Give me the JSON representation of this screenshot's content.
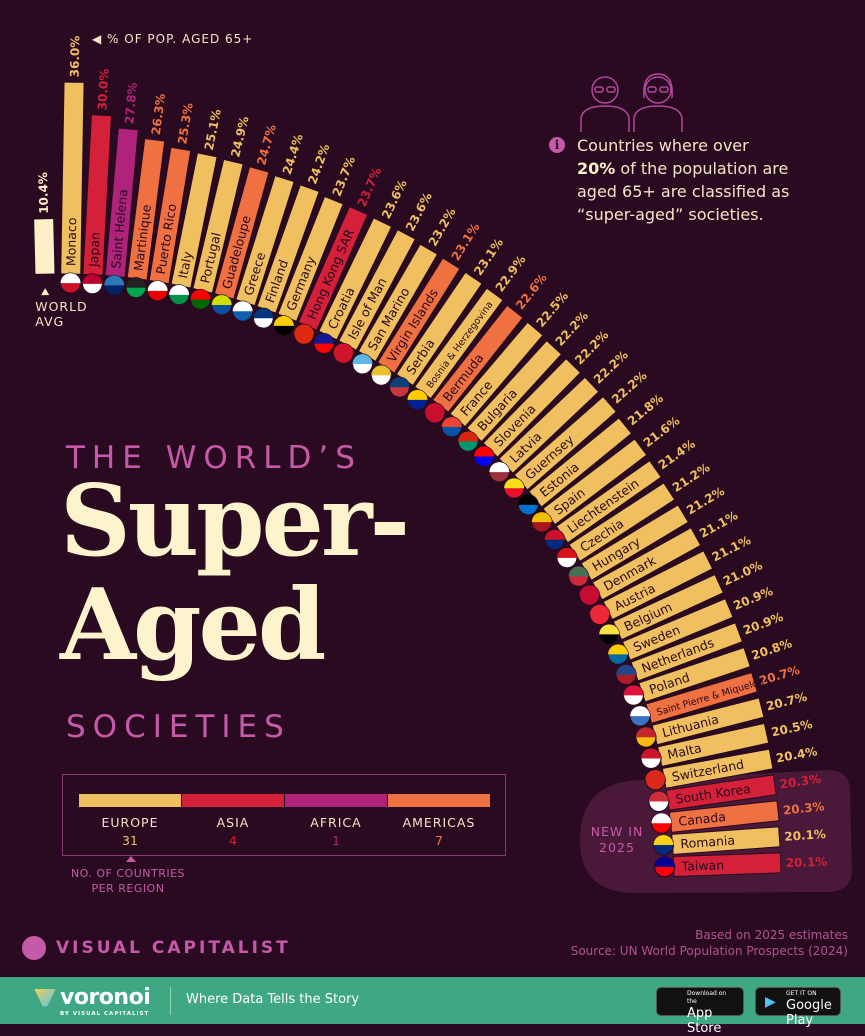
{
  "header": {
    "axis_note": "◀ % OF POP. AGED 65+"
  },
  "info": {
    "icon": "info-icon",
    "text_pre": "Countries where over",
    "text_bold": "20%",
    "text_post": "of the population are aged 65+ are classified as “super-aged” societies."
  },
  "title": {
    "line1": "THE WORLD’S",
    "line2": "Super-",
    "line3": "Aged",
    "line4": "SOCIETIES"
  },
  "legend": {
    "regions": [
      {
        "name": "EUROPE",
        "count": "31",
        "color": "#f0c060"
      },
      {
        "name": "ASIA",
        "count": "4",
        "color": "#d42038"
      },
      {
        "name": "AFRICA",
        "count": "1",
        "color": "#b0237a"
      },
      {
        "name": "AMERICAS",
        "count": "7",
        "color": "#ef7040"
      }
    ],
    "note": "NO. OF COUNTRIES PER REGION"
  },
  "highlight": {
    "label_line1": "NEW IN",
    "label_line2": "2025"
  },
  "brand": "VISUAL CAPITALIST",
  "source": {
    "line1": "Based on 2025 estimates",
    "line2": "Source: UN World Population Prospects (2024)"
  },
  "footer": {
    "logo": "voronoi",
    "logo_sub": "BY VISUAL CAPITALIST",
    "tagline": "Where Data Tells the Story",
    "app_store_small": "Download on the",
    "app_store": "App Store",
    "google_small": "GET IT ON",
    "google": "Google Play"
  },
  "chart_data": {
    "type": "bar",
    "layout": "radial",
    "unit": "% of population aged 65+",
    "reference": {
      "label": "WORLD AVG",
      "value": 10.4,
      "value_label": "10.4%",
      "color": "#fdf0c8"
    },
    "region_colors": {
      "Europe": "#f0c060",
      "Asia": "#d42038",
      "Africa": "#b0237a",
      "Americas": "#ef7040"
    },
    "series": [
      {
        "name": "Monaco",
        "value": 36.0,
        "label": "36.0%",
        "region": "Europe",
        "flag": [
          "#ce1126",
          "#ffffff"
        ]
      },
      {
        "name": "Japan",
        "value": 30.0,
        "label": "30.0%",
        "region": "Asia",
        "flag": [
          "#ffffff",
          "#bc002d"
        ]
      },
      {
        "name": "Saint Helena",
        "value": 27.8,
        "label": "27.8%",
        "region": "Africa",
        "flag": [
          "#012169",
          "#2a7ab8"
        ]
      },
      {
        "name": "Martinique",
        "value": 26.3,
        "label": "26.3%",
        "region": "Americas",
        "flag": [
          "#00a651",
          "#222222"
        ]
      },
      {
        "name": "Puerto Rico",
        "value": 25.3,
        "label": "25.3%",
        "region": "Americas",
        "flag": [
          "#ed0000",
          "#ffffff"
        ]
      },
      {
        "name": "Italy",
        "value": 25.1,
        "label": "25.1%",
        "region": "Europe",
        "flag": [
          "#009246",
          "#ffffff"
        ]
      },
      {
        "name": "Portugal",
        "value": 24.9,
        "label": "24.9%",
        "region": "Europe",
        "flag": [
          "#006600",
          "#ff0000"
        ]
      },
      {
        "name": "Guadeloupe",
        "value": 24.7,
        "label": "24.7%",
        "region": "Americas",
        "flag": [
          "#0b4fa0",
          "#cfe000"
        ]
      },
      {
        "name": "Greece",
        "value": 24.4,
        "label": "24.4%",
        "region": "Europe",
        "flag": [
          "#0d5eaf",
          "#ffffff"
        ]
      },
      {
        "name": "Finland",
        "value": 24.2,
        "label": "24.2%",
        "region": "Europe",
        "flag": [
          "#ffffff",
          "#003580"
        ]
      },
      {
        "name": "Germany",
        "value": 23.7,
        "label": "23.7%",
        "region": "Europe",
        "flag": [
          "#000000",
          "#ffce00"
        ]
      },
      {
        "name": "Hong Kong SAR",
        "value": 23.7,
        "label": "23.7%",
        "region": "Asia",
        "flag": [
          "#de2910",
          "#de2910"
        ]
      },
      {
        "name": "Croatia",
        "value": 23.6,
        "label": "23.6%",
        "region": "Europe",
        "flag": [
          "#ff0000",
          "#171796"
        ]
      },
      {
        "name": "Isle of Man",
        "value": 23.6,
        "label": "23.6%",
        "region": "Europe",
        "flag": [
          "#cf142b",
          "#cf142b"
        ]
      },
      {
        "name": "San Marino",
        "value": 23.2,
        "label": "23.2%",
        "region": "Europe",
        "flag": [
          "#ffffff",
          "#5eb6e4"
        ]
      },
      {
        "name": "Virgin Islands",
        "value": 23.1,
        "label": "23.1%",
        "region": "Americas",
        "flag": [
          "#ffffff",
          "#e8c030"
        ]
      },
      {
        "name": "Serbia",
        "value": 23.1,
        "label": "23.1%",
        "region": "Europe",
        "flag": [
          "#c6363c",
          "#0c4076"
        ]
      },
      {
        "name": "Bosnia & Herzegovina",
        "value": 22.9,
        "label": "22.9%",
        "region": "Europe",
        "flag": [
          "#002395",
          "#fecb00"
        ]
      },
      {
        "name": "Bermuda",
        "value": 22.6,
        "label": "22.6%",
        "region": "Americas",
        "flag": [
          "#c8102e",
          "#c8102e"
        ]
      },
      {
        "name": "France",
        "value": 22.5,
        "label": "22.5%",
        "region": "Europe",
        "flag": [
          "#0055a4",
          "#ef4135"
        ]
      },
      {
        "name": "Bulgaria",
        "value": 22.2,
        "label": "22.2%",
        "region": "Europe",
        "flag": [
          "#00966e",
          "#d62612"
        ]
      },
      {
        "name": "Slovenia",
        "value": 22.2,
        "label": "22.2%",
        "region": "Europe",
        "flag": [
          "#0000ff",
          "#ff0000"
        ]
      },
      {
        "name": "Latvia",
        "value": 22.2,
        "label": "22.2%",
        "region": "Europe",
        "flag": [
          "#9e3039",
          "#ffffff"
        ]
      },
      {
        "name": "Guernsey",
        "value": 22.2,
        "label": "22.2%",
        "region": "Europe",
        "flag": [
          "#e8112d",
          "#f9dd16"
        ]
      },
      {
        "name": "Estonia",
        "value": 21.8,
        "label": "21.8%",
        "region": "Europe",
        "flag": [
          "#0072ce",
          "#000000"
        ]
      },
      {
        "name": "Spain",
        "value": 21.6,
        "label": "21.6%",
        "region": "Europe",
        "flag": [
          "#aa151b",
          "#f1bf00"
        ]
      },
      {
        "name": "Liechtenstein",
        "value": 21.4,
        "label": "21.4%",
        "region": "Europe",
        "flag": [
          "#002b7f",
          "#ce1126"
        ]
      },
      {
        "name": "Czechia",
        "value": 21.2,
        "label": "21.2%",
        "region": "Europe",
        "flag": [
          "#ffffff",
          "#d7141a"
        ]
      },
      {
        "name": "Hungary",
        "value": 21.2,
        "label": "21.2%",
        "region": "Europe",
        "flag": [
          "#ce2939",
          "#477050"
        ]
      },
      {
        "name": "Denmark",
        "value": 21.1,
        "label": "21.1%",
        "region": "Europe",
        "flag": [
          "#c60c30",
          "#c60c30"
        ]
      },
      {
        "name": "Austria",
        "value": 21.1,
        "label": "21.1%",
        "region": "Europe",
        "flag": [
          "#ed2939",
          "#ed2939"
        ]
      },
      {
        "name": "Belgium",
        "value": 21.0,
        "label": "21.0%",
        "region": "Europe",
        "flag": [
          "#000000",
          "#fae042"
        ]
      },
      {
        "name": "Sweden",
        "value": 20.9,
        "label": "20.9%",
        "region": "Europe",
        "flag": [
          "#006aa7",
          "#fecc00"
        ]
      },
      {
        "name": "Netherlands",
        "value": 20.9,
        "label": "20.9%",
        "region": "Europe",
        "flag": [
          "#ae1c28",
          "#21468b"
        ]
      },
      {
        "name": "Poland",
        "value": 20.8,
        "label": "20.8%",
        "region": "Europe",
        "flag": [
          "#ffffff",
          "#dc143c"
        ]
      },
      {
        "name": "Saint Pierre & Miquelon",
        "value": 20.7,
        "label": "20.7%",
        "region": "Americas",
        "flag": [
          "#3a75c4",
          "#ffffff"
        ]
      },
      {
        "name": "Lithuania",
        "value": 20.7,
        "label": "20.7%",
        "region": "Europe",
        "flag": [
          "#fdb913",
          "#c1272d"
        ]
      },
      {
        "name": "Malta",
        "value": 20.5,
        "label": "20.5%",
        "region": "Europe",
        "flag": [
          "#ffffff",
          "#cf142b"
        ]
      },
      {
        "name": "Switzerland",
        "value": 20.4,
        "label": "20.4%",
        "region": "Europe",
        "flag": [
          "#da291c",
          "#da291c"
        ]
      },
      {
        "name": "South Korea",
        "value": 20.3,
        "label": "20.3%",
        "region": "Asia",
        "flag": [
          "#ffffff",
          "#cd2e3a"
        ]
      },
      {
        "name": "Canada",
        "value": 20.3,
        "label": "20.3%",
        "region": "Americas",
        "flag": [
          "#ff0000",
          "#ffffff"
        ]
      },
      {
        "name": "Romania",
        "value": 20.1,
        "label": "20.1%",
        "region": "Europe",
        "flag": [
          "#002b7f",
          "#fcd116"
        ]
      },
      {
        "name": "Taiwan",
        "value": 20.1,
        "label": "20.1%",
        "region": "Asia",
        "flag": [
          "#fe0000",
          "#000095"
        ]
      }
    ],
    "new_in_2025": [
      "South Korea",
      "Canada",
      "Romania",
      "Taiwan"
    ]
  }
}
